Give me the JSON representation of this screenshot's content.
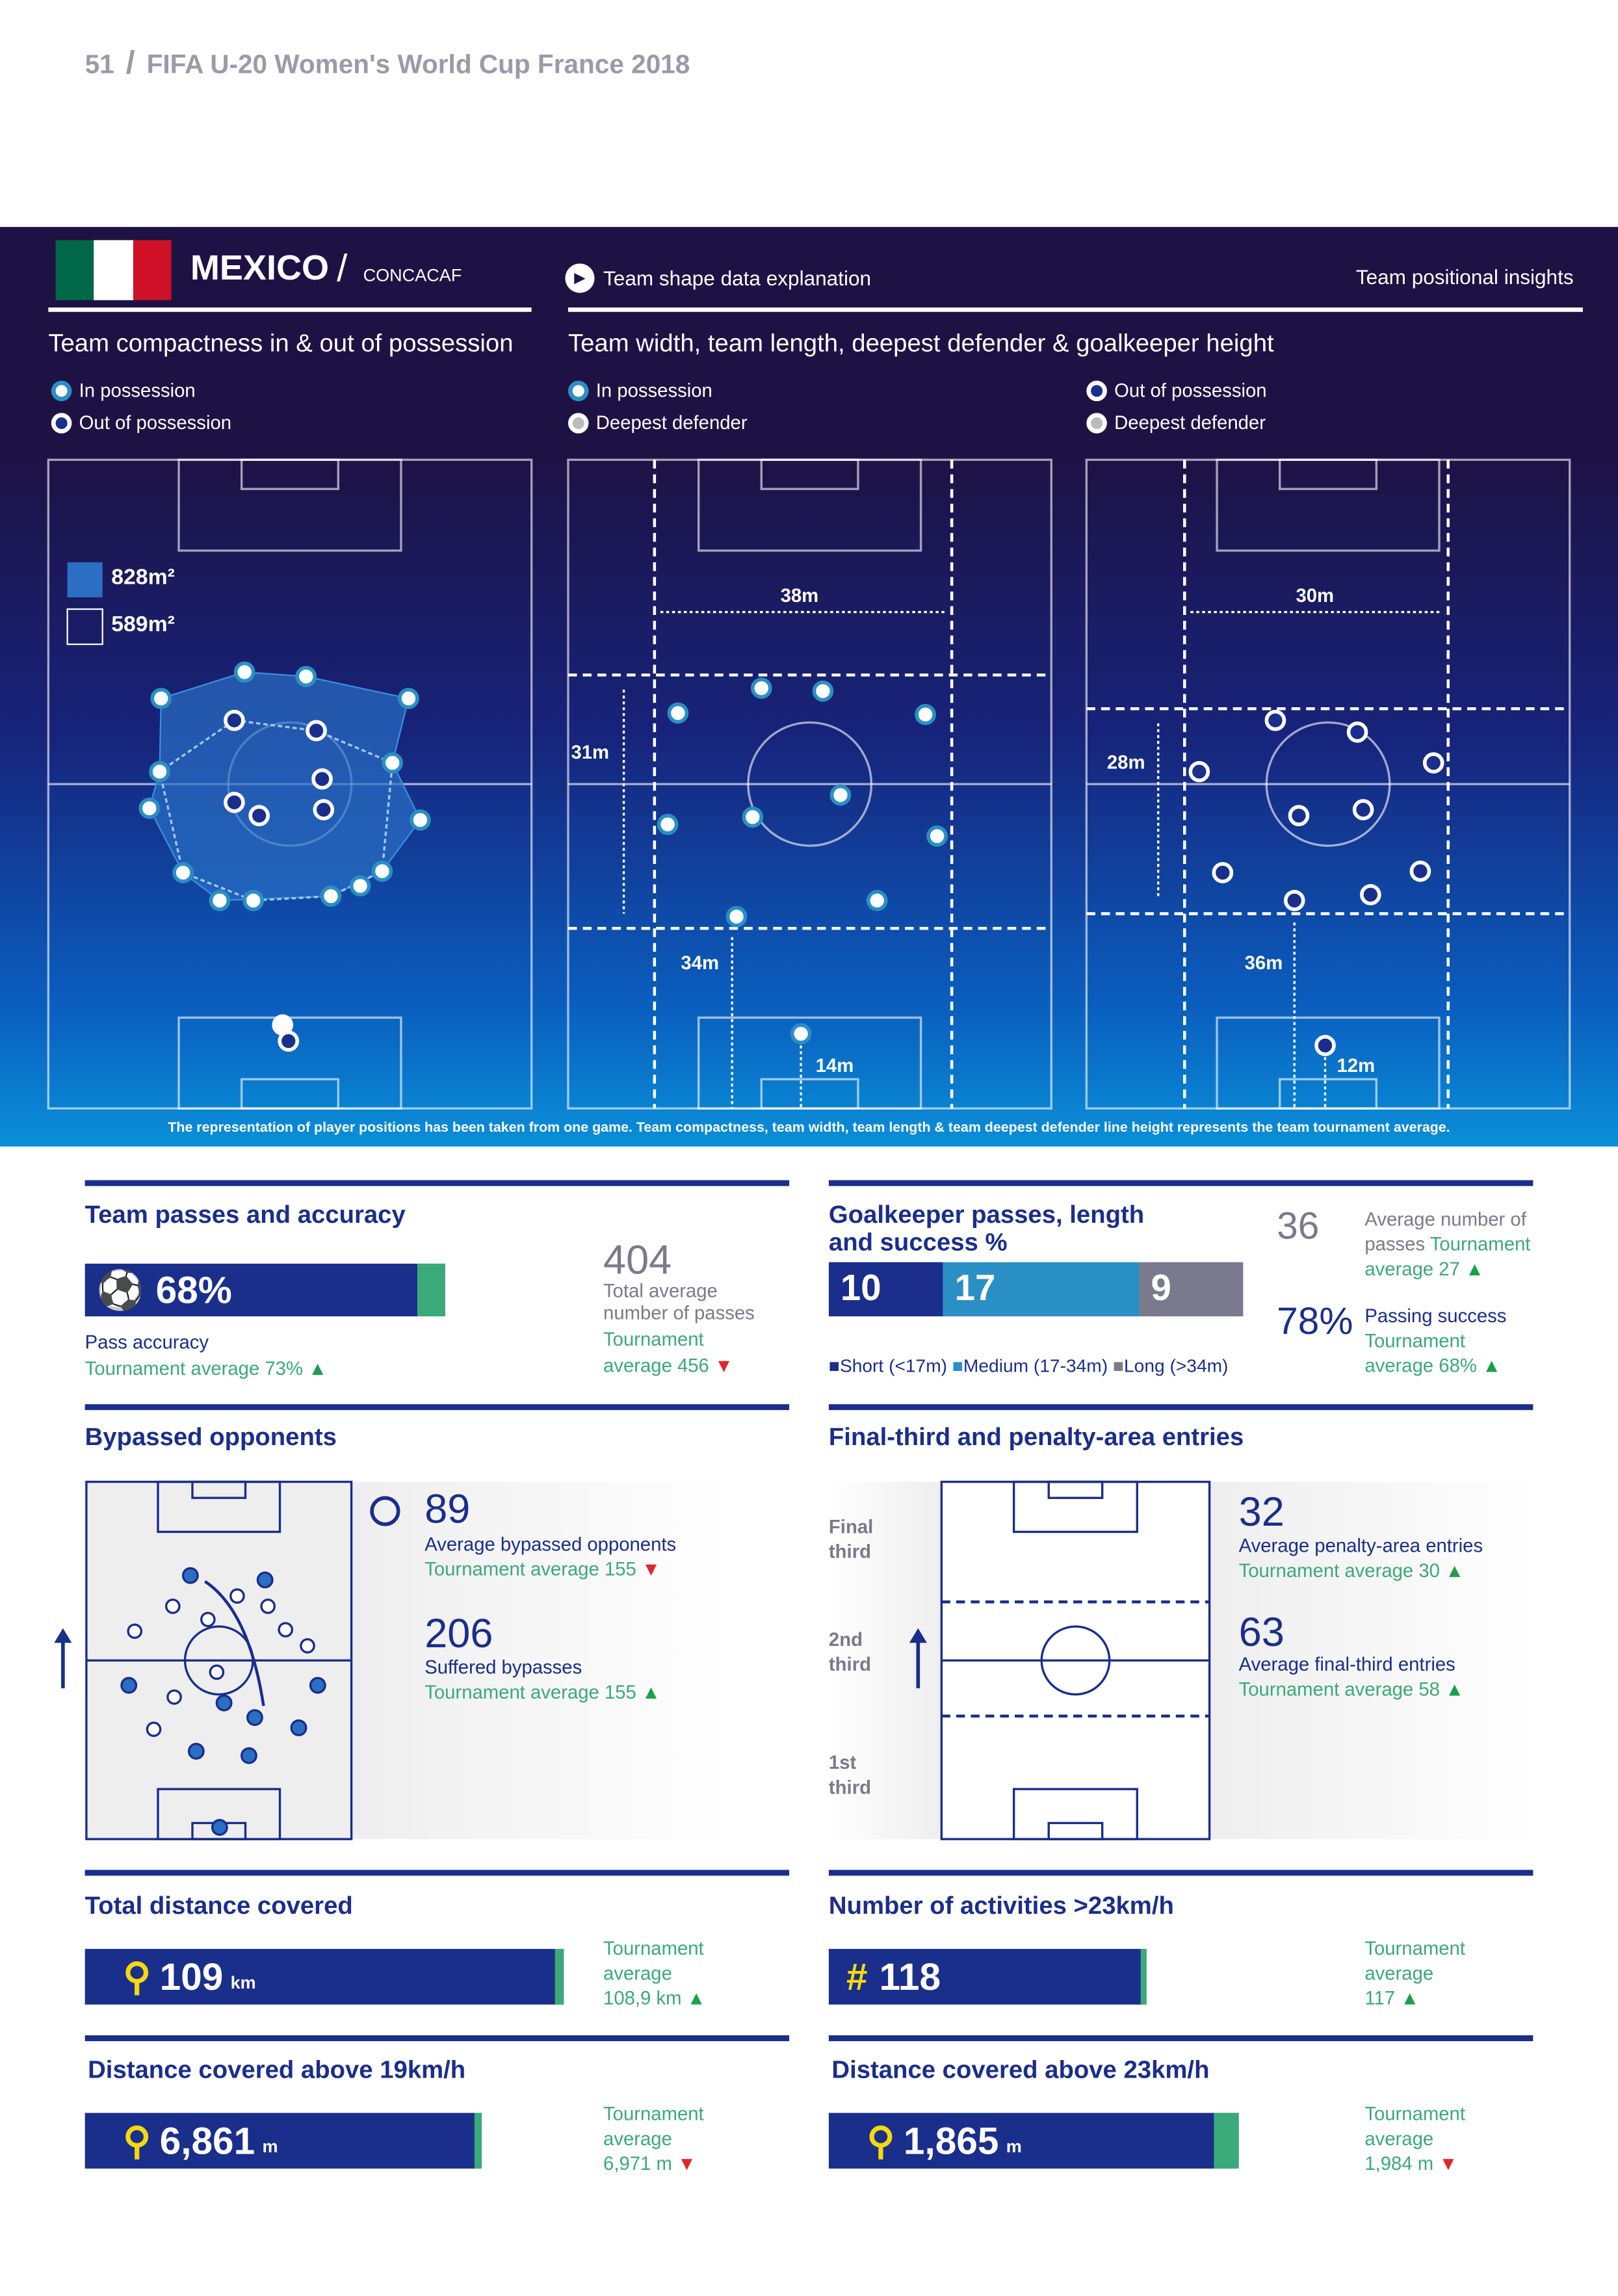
{
  "header": {
    "page_number": "51",
    "title": "FIFA U-20 Women's World Cup France 2018"
  },
  "team": {
    "name": "MEXICO",
    "confederation": "CONCACAF",
    "flag_colors": [
      "#006847",
      "#ffffff",
      "#ce1126"
    ]
  },
  "nav": {
    "explanation_link": "Team shape data explanation",
    "insights": "Team positional insights"
  },
  "compactness": {
    "title": "Team compactness in & out of possession",
    "legend_in": "In possession",
    "legend_out": "Out of possession",
    "area_in": "828m²",
    "area_out": "589m²"
  },
  "width_length": {
    "title": "Team width, team length, deepest defender & goalkeeper height",
    "legend_in": "In possession",
    "legend_out": "Out of possession",
    "legend_deep": "Deepest defender",
    "in": {
      "width": "38m",
      "length": "31m",
      "defender": "34m",
      "gk": "14m"
    },
    "out": {
      "width": "30m",
      "length": "28m",
      "defender": "36m",
      "gk": "12m"
    }
  },
  "footnote": "The representation of player positions has been taken from one game. Team compactness, team width, team length & team deepest defender line height represents the team tournament average.",
  "passes": {
    "title": "Team passes and accuracy",
    "accuracy": "68%",
    "accuracy_value": 68,
    "accuracy_label": "Pass accuracy",
    "accuracy_avg": "Tournament average 73%",
    "total": "404",
    "total_label": "Total average number of passes",
    "total_avg_a": "Tournament",
    "total_avg_b": "average 456"
  },
  "gk": {
    "title": "Goalkeeper passes, length and success %",
    "short": "10",
    "medium": "17",
    "long": "9",
    "legend_short": "Short (<17m)",
    "legend_medium": "Medium (17-34m)",
    "legend_long": "Long (>34m)",
    "avg_passes": "36",
    "avg_label": "Average number of passes",
    "avg_t": "Tournament",
    "avg_t2": "average 27",
    "success": "78%",
    "success_label": "Passing success",
    "success_t": "Tournament",
    "success_t2": "average 68%"
  },
  "bypassed": {
    "title": "Bypassed opponents",
    "avg": "89",
    "avg_label": "Average bypassed opponents",
    "avg_t": "Tournament average 155",
    "suffered": "206",
    "suffered_label": "Suffered bypasses",
    "suffered_t": "Tournament average 155"
  },
  "entries": {
    "title": "Final-third and penalty-area entries",
    "final": "Final third",
    "second": "2nd third",
    "first": "1st third",
    "pa": "32",
    "pa_label": "Average penalty-area entries",
    "pa_t": "Tournament average 30",
    "ft": "63",
    "ft_label": "Average final-third entries",
    "ft_t": "Tournament average 58"
  },
  "distance": {
    "title": "Total distance covered",
    "value": "109",
    "unit": "km",
    "t1": "Tournament",
    "t2": "average",
    "t3": "108,9 km"
  },
  "activities": {
    "title": "Number of activities >23km/h",
    "value": "118",
    "t1": "Tournament",
    "t2": "average",
    "t3": "117"
  },
  "d19": {
    "title": "Distance covered above 19km/h",
    "value": "6,861",
    "unit": "m",
    "t1": "Tournament",
    "t2": "average",
    "t3": "6,971 m"
  },
  "d23": {
    "title": "Distance covered above 23km/h",
    "value": "1,865",
    "unit": "m",
    "t1": "Tournament",
    "t2": "average",
    "t3": "1,984 m"
  },
  "colors": {
    "navy": "#1a2e8c",
    "green": "#3aaa7a",
    "medium": "#2a8fc4",
    "long": "#7a7a8e",
    "banner": "#1e1245"
  }
}
